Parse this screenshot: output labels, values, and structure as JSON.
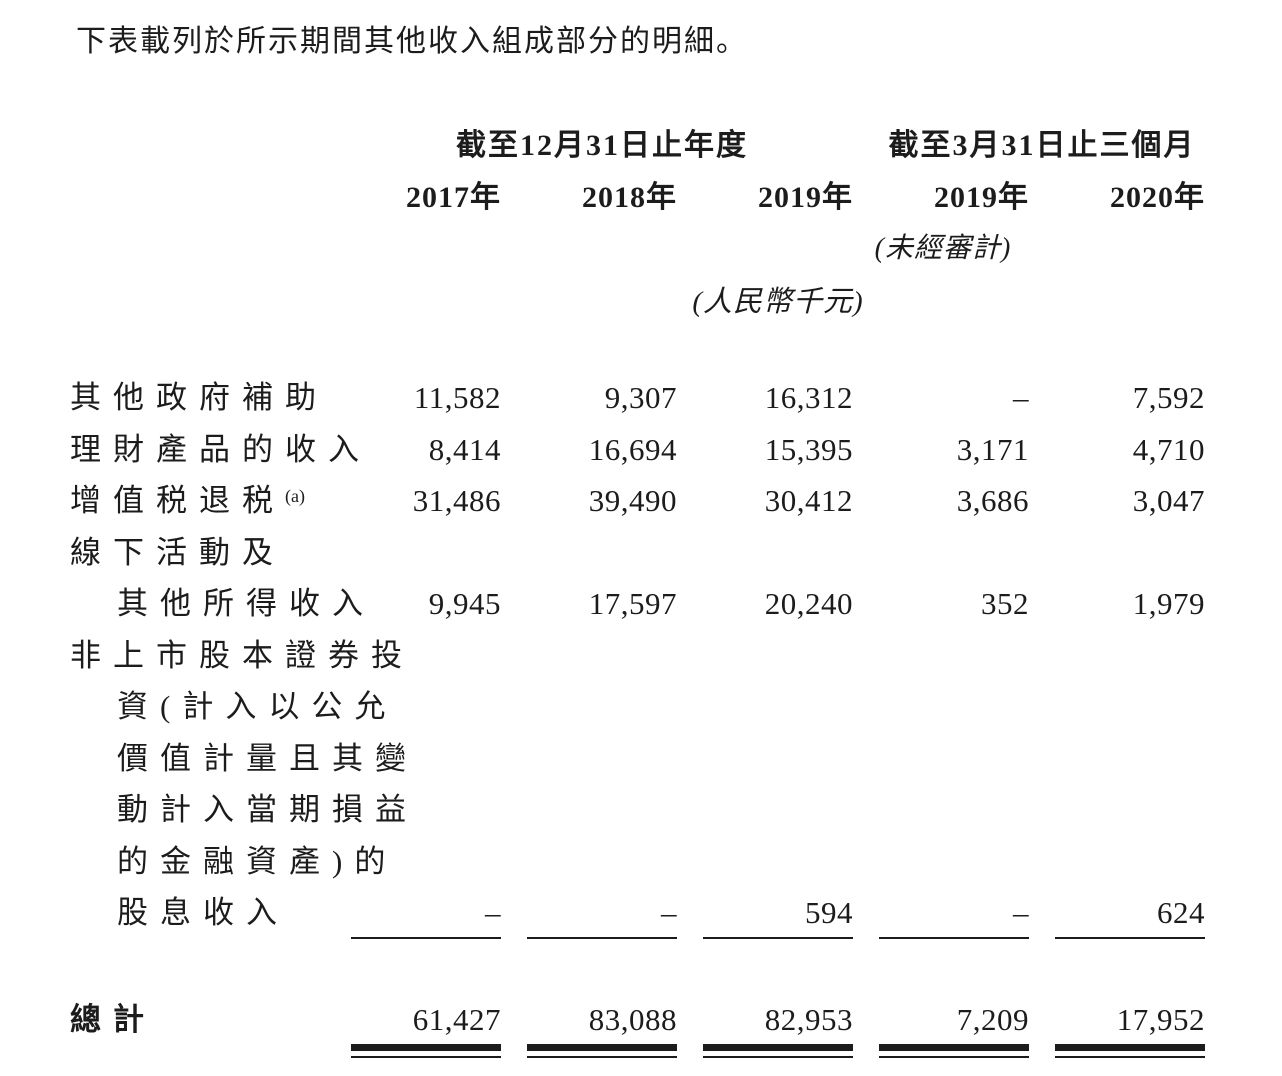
{
  "colors": {
    "ink": "#1c1c1c",
    "background": "#ffffff"
  },
  "intro": "下表載列於所示期間其他收入組成部分的明細。",
  "table": {
    "group_headers": [
      "截至12月31日止年度",
      "截至3月31日止三個月"
    ],
    "year_headers": [
      "2017年",
      "2018年",
      "2019年",
      "2019年",
      "2020年"
    ],
    "notes": {
      "unaudited": "(未經審計)",
      "unit": "(人民幣千元)"
    },
    "rows": [
      {
        "label": "其他政府補助",
        "values": [
          "11,582",
          "9,307",
          "16,312",
          "–",
          "7,592"
        ]
      },
      {
        "label": "理財產品的收入",
        "values": [
          "8,414",
          "16,694",
          "15,395",
          "3,171",
          "4,710"
        ]
      },
      {
        "label": "增值税退税",
        "footnote": "(a)",
        "values": [
          "31,486",
          "39,490",
          "30,412",
          "3,686",
          "3,047"
        ]
      },
      {
        "label": "線下活動及"
      },
      {
        "label": "其他所得收入",
        "values": [
          "9,945",
          "17,597",
          "20,240",
          "352",
          "1,979"
        ]
      },
      {
        "label": "非上市股本證券投"
      },
      {
        "label": "資(計入以公允"
      },
      {
        "label": "價值計量且其變"
      },
      {
        "label": "動計入當期損益"
      },
      {
        "label": "的金融資產)的"
      },
      {
        "label": "股息收入",
        "values": [
          "–",
          "–",
          "594",
          "–",
          "624"
        ]
      }
    ],
    "total": {
      "label": "總計",
      "values": [
        "61,427",
        "83,088",
        "82,953",
        "7,209",
        "17,952"
      ]
    }
  }
}
